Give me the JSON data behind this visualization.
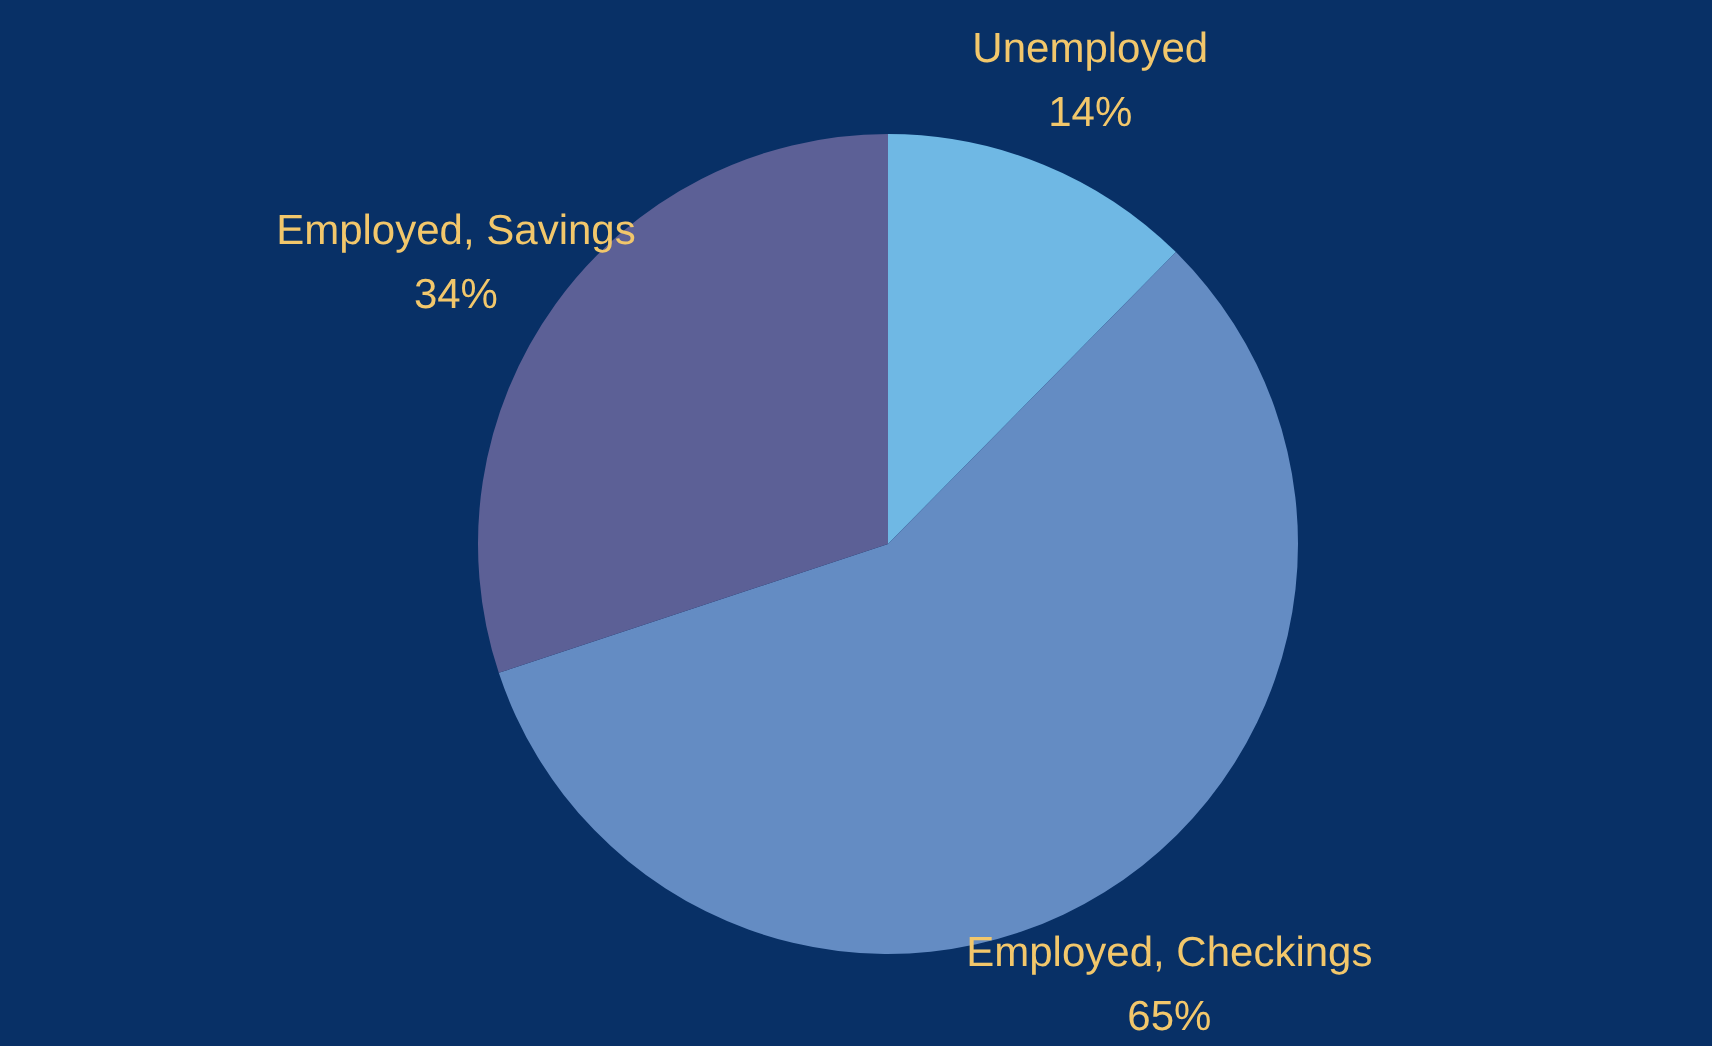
{
  "chart_data": {
    "type": "pie",
    "categories": [
      "Unemployed",
      "Employed, Checkings",
      "Employed, Savings"
    ],
    "values": [
      14,
      65,
      34
    ],
    "colors": [
      "#6fb8e4",
      "#648cc3",
      "#5c6096"
    ],
    "value_labels": [
      "14%",
      "65%",
      "34%"
    ],
    "legend": false
  }
}
